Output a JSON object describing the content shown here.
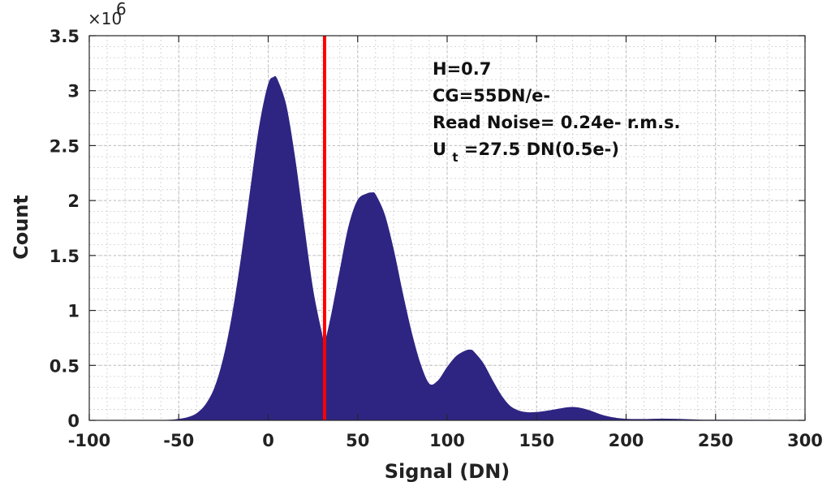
{
  "chart_data": {
    "type": "area",
    "xlabel": "Signal (DN)",
    "ylabel": "Count",
    "xlim": [
      -100,
      300
    ],
    "ylim": [
      0,
      3500000
    ],
    "x_ticks": [
      "-100",
      "-50",
      "0",
      "50",
      "100",
      "150",
      "200",
      "250",
      "300"
    ],
    "y_ticks": [
      "0",
      "0.5",
      "1",
      "1.5",
      "2",
      "2.5",
      "3",
      "3.5"
    ],
    "y_exponent_prefix": "×10",
    "y_exponent_power": "6",
    "grid": true,
    "fill_color": "#2e2583",
    "threshold_line": {
      "x": 31.5,
      "color": "#ff0000"
    },
    "series": [
      {
        "x": [
          -100,
          -60,
          -50,
          -45,
          -40,
          -35,
          -30,
          -25,
          -20,
          -15,
          -10,
          -5,
          0,
          3,
          5,
          10,
          15,
          20,
          25,
          30,
          31.5,
          35,
          40,
          45,
          50,
          55,
          58,
          60,
          65,
          70,
          75,
          80,
          85,
          90,
          95,
          100,
          105,
          110,
          113,
          115,
          120,
          125,
          130,
          135,
          140,
          145,
          150,
          155,
          160,
          165,
          170,
          175,
          180,
          185,
          190,
          195,
          200,
          210,
          220,
          230,
          240,
          250,
          300
        ],
        "values": [
          0,
          0,
          10000,
          25000,
          60000,
          140000,
          290000,
          560000,
          960000,
          1480000,
          2080000,
          2660000,
          3050000,
          3120000,
          3100000,
          2860000,
          2370000,
          1760000,
          1180000,
          780000,
          700000,
          930000,
          1350000,
          1760000,
          2000000,
          2060000,
          2070000,
          2050000,
          1870000,
          1550000,
          1160000,
          800000,
          510000,
          330000,
          360000,
          480000,
          580000,
          630000,
          640000,
          620000,
          520000,
          370000,
          230000,
          130000,
          85000,
          70000,
          72000,
          82000,
          95000,
          110000,
          118000,
          108000,
          85000,
          55000,
          32000,
          18000,
          10000,
          8000,
          12000,
          9000,
          4000,
          2000,
          0
        ]
      }
    ],
    "annotations": {
      "line1": "H=0.7",
      "line2": "CG=55DN/e-",
      "line3": "Read Noise= 0.24e- r.m.s.",
      "line4_main": "U",
      "line4_sub": "t",
      "line4_rest": "=27.5 DN(0.5e-)"
    }
  }
}
